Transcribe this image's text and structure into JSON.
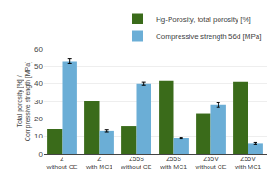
{
  "chart_data": {
    "type": "bar",
    "categories": [
      "Z\nwithout CE",
      "Z\nwith MC1",
      "Z55S\nwithout CE",
      "Z55S\nwith MC1",
      "Z55V\nwithout CE",
      "Z55V\nwith MC1"
    ],
    "ylabel": "Total porosity [%] /\nCompressive strength [MPa]",
    "series": [
      {
        "name": "Hg-Porosity, total porosity [%]",
        "color": "#3a6b1a",
        "values": [
          14,
          30,
          16,
          42,
          23,
          41
        ]
      },
      {
        "name": "Compressive strength 56d [MPa]",
        "color": "#6baed6",
        "values": [
          53,
          13,
          40,
          9,
          28,
          6
        ],
        "errors": [
          1.5,
          0.6,
          0.8,
          0.5,
          1.2,
          0.5
        ]
      }
    ],
    "ylim": [
      0,
      60
    ],
    "yticks": [
      0,
      10,
      20,
      30,
      40,
      50,
      60
    ],
    "grid": true,
    "legend": "upper right"
  }
}
